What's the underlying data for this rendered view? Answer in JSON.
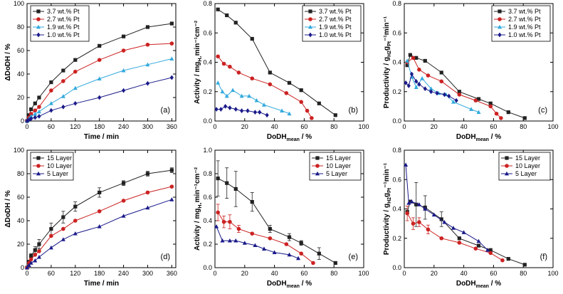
{
  "chart_data": [
    {
      "type": "line",
      "panel_label": "(a)",
      "xlabel": "Time / min",
      "ylabel": "ΔDoDH / %",
      "xlim": [
        0,
        370
      ],
      "ylim": [
        0,
        100
      ],
      "xticks": [
        0,
        60,
        120,
        180,
        240,
        300,
        360
      ],
      "yticks": [
        0,
        20,
        40,
        60,
        80,
        100
      ],
      "legend_position": "top-left",
      "series": [
        {
          "name": "3.7 wt.% Pt",
          "color": "#222222",
          "marker": "square",
          "x": [
            0,
            5,
            10,
            20,
            30,
            60,
            90,
            120,
            180,
            240,
            300,
            360
          ],
          "y": [
            0,
            5,
            10,
            15,
            20,
            33,
            43,
            52,
            64,
            72,
            80,
            83
          ]
        },
        {
          "name": "2.7 wt.% Pt",
          "color": "#cc2222",
          "marker": "circle",
          "x": [
            0,
            5,
            10,
            20,
            30,
            60,
            90,
            120,
            180,
            240,
            300,
            360
          ],
          "y": [
            0,
            3,
            6,
            9,
            12,
            26,
            34,
            42,
            52,
            60,
            65,
            66
          ]
        },
        {
          "name": "1.9 wt.% Pt",
          "color": "#33aadd",
          "marker": "triangle",
          "x": [
            0,
            5,
            10,
            20,
            30,
            60,
            90,
            120,
            180,
            240,
            300,
            360
          ],
          "y": [
            0,
            2,
            4,
            6,
            8,
            15,
            21,
            28,
            36,
            43,
            48,
            53
          ]
        },
        {
          "name": "1.0 wt.% Pt",
          "color": "#1a1a8a",
          "marker": "diamond",
          "x": [
            0,
            5,
            10,
            20,
            30,
            60,
            90,
            120,
            180,
            240,
            300,
            360
          ],
          "y": [
            0,
            1,
            2,
            3,
            4,
            9,
            12,
            15,
            20,
            26,
            32,
            37
          ]
        }
      ]
    },
    {
      "type": "line",
      "panel_label": "(b)",
      "xlabel": "DoDH",
      "xlabel_sub": "mean",
      "xlabel_suffix": " / %",
      "ylabel": "Activity / mg",
      "ylabel_sub": "H₂",
      "ylabel_suffix": "min⁻¹cm⁻²",
      "xlim": [
        0,
        100
      ],
      "ylim": [
        0,
        0.8
      ],
      "xticks": [
        0,
        20,
        40,
        60,
        80,
        100
      ],
      "yticks": [
        0,
        0.2,
        0.4,
        0.6,
        0.8
      ],
      "ytick_labels": [
        "0.0",
        "0.2",
        "0.4",
        "0.6",
        "0.8"
      ],
      "legend_position": "top-right",
      "series": [
        {
          "name": "3.7 wt.% Pt",
          "color": "#222222",
          "marker": "square",
          "x": [
            2,
            8,
            14,
            25,
            37,
            50,
            58,
            70,
            81
          ],
          "y": [
            0.76,
            0.72,
            0.67,
            0.56,
            0.33,
            0.26,
            0.21,
            0.12,
            0.04
          ]
        },
        {
          "name": "2.7 wt.% Pt",
          "color": "#cc2222",
          "marker": "circle",
          "x": [
            2,
            6,
            10,
            16,
            25,
            37,
            48,
            58,
            62,
            65
          ],
          "y": [
            0.44,
            0.39,
            0.37,
            0.33,
            0.29,
            0.25,
            0.19,
            0.13,
            0.07,
            0.02
          ]
        },
        {
          "name": "1.9 wt.% Pt",
          "color": "#33aadd",
          "marker": "triangle",
          "x": [
            2,
            5,
            8,
            12,
            18,
            23,
            28,
            33,
            45,
            50
          ],
          "y": [
            0.26,
            0.2,
            0.17,
            0.21,
            0.17,
            0.17,
            0.14,
            0.11,
            0.07,
            0.05
          ]
        },
        {
          "name": "1.0 wt.% Pt",
          "color": "#1a1a8a",
          "marker": "diamond",
          "x": [
            1,
            4,
            7,
            10,
            14,
            18,
            22,
            27,
            30,
            35
          ],
          "y": [
            0.08,
            0.08,
            0.1,
            0.09,
            0.08,
            0.07,
            0.07,
            0.06,
            0.06,
            0.04
          ]
        }
      ]
    },
    {
      "type": "line",
      "panel_label": "(c)",
      "xlabel": "DoDH",
      "xlabel_sub": "mean",
      "xlabel_suffix": " / %",
      "ylabel": "Productivity / g",
      "ylabel_sub": "H2",
      "ylabel_mid": "g",
      "ylabel_sub2": "Pt",
      "ylabel_suffix": "⁻¹min⁻¹",
      "xlim": [
        0,
        100
      ],
      "ylim": [
        0,
        0.8
      ],
      "xticks": [
        0,
        20,
        40,
        60,
        80,
        100
      ],
      "yticks": [
        0,
        0.2,
        0.4,
        0.6,
        0.8
      ],
      "ytick_labels": [
        "0.0",
        "0.2",
        "0.4",
        "0.6",
        "0.8"
      ],
      "legend_position": "top-right",
      "series": [
        {
          "name": "3.7 wt.% Pt",
          "color": "#222222",
          "marker": "square",
          "x": [
            2,
            4,
            8,
            14,
            25,
            37,
            50,
            58,
            70,
            81
          ],
          "y": [
            0.38,
            0.45,
            0.43,
            0.41,
            0.33,
            0.2,
            0.15,
            0.12,
            0.06,
            0.02
          ]
        },
        {
          "name": "2.7 wt.% Pt",
          "color": "#cc2222",
          "marker": "circle",
          "x": [
            2,
            6,
            10,
            16,
            25,
            37,
            48,
            58,
            62,
            65
          ],
          "y": [
            0.4,
            0.43,
            0.35,
            0.31,
            0.27,
            0.18,
            0.14,
            0.1,
            0.05,
            0.02
          ]
        },
        {
          "name": "1.9 wt.% Pt",
          "color": "#33aadd",
          "marker": "triangle",
          "x": [
            2,
            5,
            8,
            12,
            18,
            23,
            28,
            33,
            45,
            50
          ],
          "y": [
            0.41,
            0.3,
            0.23,
            0.29,
            0.22,
            0.19,
            0.18,
            0.13,
            0.08,
            0.06
          ]
        },
        {
          "name": "1.0 wt.% Pt",
          "color": "#1a1a8a",
          "marker": "diamond",
          "x": [
            1,
            3,
            5,
            8,
            10,
            14,
            18,
            22,
            27,
            30,
            35
          ],
          "y": [
            0.26,
            0.24,
            0.32,
            0.27,
            0.25,
            0.22,
            0.2,
            0.19,
            0.18,
            0.17,
            0.14
          ]
        }
      ]
    },
    {
      "type": "line",
      "panel_label": "(d)",
      "xlabel": "Time / min",
      "ylabel": "ΔDoDH / %",
      "xlim": [
        0,
        370
      ],
      "ylim": [
        0,
        100
      ],
      "xticks": [
        0,
        60,
        120,
        180,
        240,
        300,
        360
      ],
      "yticks": [
        0,
        20,
        40,
        60,
        80,
        100
      ],
      "legend_position": "top-left",
      "series": [
        {
          "name": "15 Layer",
          "color": "#222222",
          "marker": "square",
          "x": [
            0,
            5,
            10,
            20,
            30,
            60,
            90,
            120,
            180,
            240,
            300,
            360
          ],
          "y": [
            0,
            5,
            10,
            15,
            20,
            33,
            43,
            52,
            64,
            72,
            80,
            83
          ],
          "err": [
            0,
            1,
            2,
            3,
            4,
            5,
            5,
            4,
            4,
            2,
            2,
            2
          ]
        },
        {
          "name": "10 Layer",
          "color": "#cc2222",
          "marker": "circle",
          "x": [
            0,
            5,
            10,
            20,
            30,
            60,
            90,
            120,
            180,
            240,
            300,
            360
          ],
          "y": [
            0,
            4,
            7,
            11,
            14,
            27,
            33,
            40,
            48,
            57,
            64,
            69
          ],
          "err": [
            0,
            0,
            0,
            0,
            0,
            0,
            0,
            0,
            0,
            0,
            0,
            0
          ]
        },
        {
          "name": "5 Layer",
          "color": "#1a1a8a",
          "marker": "triangle",
          "x": [
            0,
            5,
            10,
            20,
            30,
            60,
            90,
            120,
            180,
            240,
            300,
            360
          ],
          "y": [
            0,
            2,
            4,
            6,
            9,
            17,
            24,
            29,
            35,
            44,
            51,
            58
          ],
          "err": [
            0,
            0,
            0,
            0,
            0,
            0,
            0,
            0,
            0,
            0,
            0,
            0
          ]
        }
      ]
    },
    {
      "type": "line",
      "panel_label": "(e)",
      "xlabel": "DoDH",
      "xlabel_sub": "mean",
      "xlabel_suffix": " / %",
      "ylabel": "Activity / mg",
      "ylabel_sub": "H₂",
      "ylabel_suffix": "min⁻¹cm⁻²",
      "xlim": [
        0,
        100
      ],
      "ylim": [
        0,
        1.0
      ],
      "xticks": [
        0,
        20,
        40,
        60,
        80,
        100
      ],
      "yticks": [
        0,
        0.2,
        0.4,
        0.6,
        0.8,
        1.0
      ],
      "ytick_labels": [
        "0.0",
        "0.2",
        "0.4",
        "0.6",
        "0.8",
        "1.0"
      ],
      "legend_position": "top-right",
      "series": [
        {
          "name": "15 Layer",
          "color": "#222222",
          "marker": "square",
          "x": [
            2,
            8,
            14,
            25,
            37,
            50,
            58,
            70,
            81
          ],
          "y": [
            0.76,
            0.72,
            0.67,
            0.56,
            0.33,
            0.26,
            0.21,
            0.12,
            0.04
          ],
          "err": [
            0.15,
            0.13,
            0.15,
            0.08,
            0.03,
            0.03,
            0.02,
            0.05,
            0
          ]
        },
        {
          "name": "10 Layer",
          "color": "#cc2222",
          "marker": "circle",
          "x": [
            2,
            6,
            10,
            16,
            25,
            37,
            48,
            58,
            66
          ],
          "y": [
            0.47,
            0.39,
            0.39,
            0.33,
            0.29,
            0.25,
            0.2,
            0.12,
            0.04
          ],
          "err": [
            0.07,
            0.05,
            0.06,
            0.03,
            0,
            0,
            0,
            0,
            0
          ]
        },
        {
          "name": "5 Layer",
          "color": "#1a1a8a",
          "marker": "triangle",
          "x": [
            1,
            5,
            10,
            14,
            20,
            27,
            33,
            40,
            50,
            56
          ],
          "y": [
            0.35,
            0.23,
            0.23,
            0.23,
            0.21,
            0.19,
            0.16,
            0.13,
            0.11,
            0.08
          ],
          "err": [
            0,
            0,
            0,
            0,
            0,
            0,
            0,
            0,
            0,
            0
          ]
        }
      ]
    },
    {
      "type": "line",
      "panel_label": "(f)",
      "xlabel": "DoDH",
      "xlabel_sub": "mean",
      "xlabel_suffix": " / %",
      "ylabel": "Productivity / g",
      "ylabel_sub": "H2",
      "ylabel_mid": "g",
      "ylabel_sub2": "Pt",
      "ylabel_suffix": "⁻¹min⁻¹",
      "xlim": [
        0,
        100
      ],
      "ylim": [
        0,
        0.8
      ],
      "xticks": [
        0,
        20,
        40,
        60,
        80,
        100
      ],
      "yticks": [
        0,
        0.2,
        0.4,
        0.6,
        0.8
      ],
      "ytick_labels": [
        "0.0",
        "0.2",
        "0.4",
        "0.6",
        "0.8"
      ],
      "legend_position": "top-right",
      "series": [
        {
          "name": "15 Layer",
          "color": "#222222",
          "marker": "square",
          "x": [
            2,
            4,
            8,
            14,
            25,
            37,
            50,
            58,
            70,
            81
          ],
          "y": [
            0.38,
            0.45,
            0.43,
            0.41,
            0.33,
            0.2,
            0.15,
            0.12,
            0.06,
            0.02
          ],
          "err": [
            0,
            0,
            0.15,
            0.08,
            0.05,
            0,
            0,
            0,
            0,
            0
          ]
        },
        {
          "name": "10 Layer",
          "color": "#cc2222",
          "marker": "circle",
          "x": [
            2,
            6,
            10,
            16,
            25,
            37,
            48,
            58,
            66
          ],
          "y": [
            0.37,
            0.3,
            0.31,
            0.26,
            0.2,
            0.17,
            0.13,
            0.1,
            0.05
          ],
          "err": [
            0.05,
            0.04,
            0.03,
            0.03,
            0,
            0,
            0,
            0,
            0
          ]
        },
        {
          "name": "5 Layer",
          "color": "#1a1a8a",
          "marker": "triangle",
          "x": [
            1,
            3,
            5,
            10,
            14,
            20,
            27,
            33,
            40,
            50,
            56
          ],
          "y": [
            0.7,
            0.44,
            0.45,
            0.43,
            0.4,
            0.36,
            0.31,
            0.27,
            0.24,
            0.18,
            0.12
          ],
          "err": [
            0,
            0,
            0,
            0,
            0,
            0,
            0,
            0,
            0,
            0,
            0
          ]
        }
      ]
    }
  ]
}
